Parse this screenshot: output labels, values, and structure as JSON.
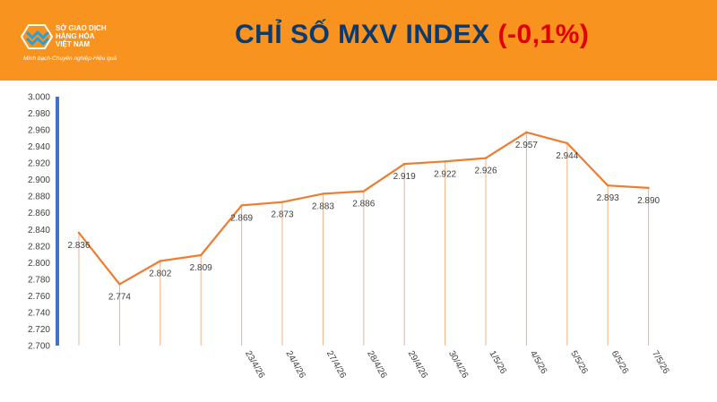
{
  "header": {
    "logo_lines": [
      "SỞ GIAO DỊCH",
      "HÀNG HÓA",
      "VIỆT NAM"
    ],
    "logo_slogan": "Minh bạch-Chuyên nghiệp-Hiệu quả",
    "title": "CHỈ SỐ MXV INDEX ",
    "change": "(-0,1%)"
  },
  "colors": {
    "header_bg": "#f7931e",
    "line": "#ed7d31",
    "axis": "#4472c4",
    "title": "#0b3a6e",
    "change": "#e00000"
  },
  "chart_data": {
    "type": "line",
    "title": "",
    "xlabel": "",
    "ylabel": "",
    "ylim": [
      2700,
      3000
    ],
    "ytick_step": 20,
    "y_ticks": [
      "2.700",
      "2.720",
      "2.740",
      "2.760",
      "2.780",
      "2.800",
      "2.820",
      "2.840",
      "2.860",
      "2.880",
      "2.900",
      "2.920",
      "2.940",
      "2.960",
      "2.980",
      "3.000"
    ],
    "categories": [
      "",
      "",
      "",
      "",
      "23/4/26",
      "24/4/26",
      "27/4/26",
      "28/4/26",
      "29/4/26",
      "30/4/26",
      "1/5/26",
      "4/5/26",
      "5/5/26",
      "6/5/26",
      "7/5/26"
    ],
    "values": [
      2836,
      2774,
      2802,
      2809,
      2869,
      2873,
      2883,
      2886,
      2919,
      2922,
      2926,
      2957,
      2944,
      2893,
      2890
    ],
    "data_labels": [
      "2.836",
      "2.774",
      "2.802",
      "2.809",
      "2.869",
      "2.873",
      "2.883",
      "2.886",
      "2.919",
      "2.922",
      "2.926",
      "2.957",
      "2.944",
      "2.893",
      "2.890"
    ],
    "grid": false,
    "legend": "none"
  }
}
